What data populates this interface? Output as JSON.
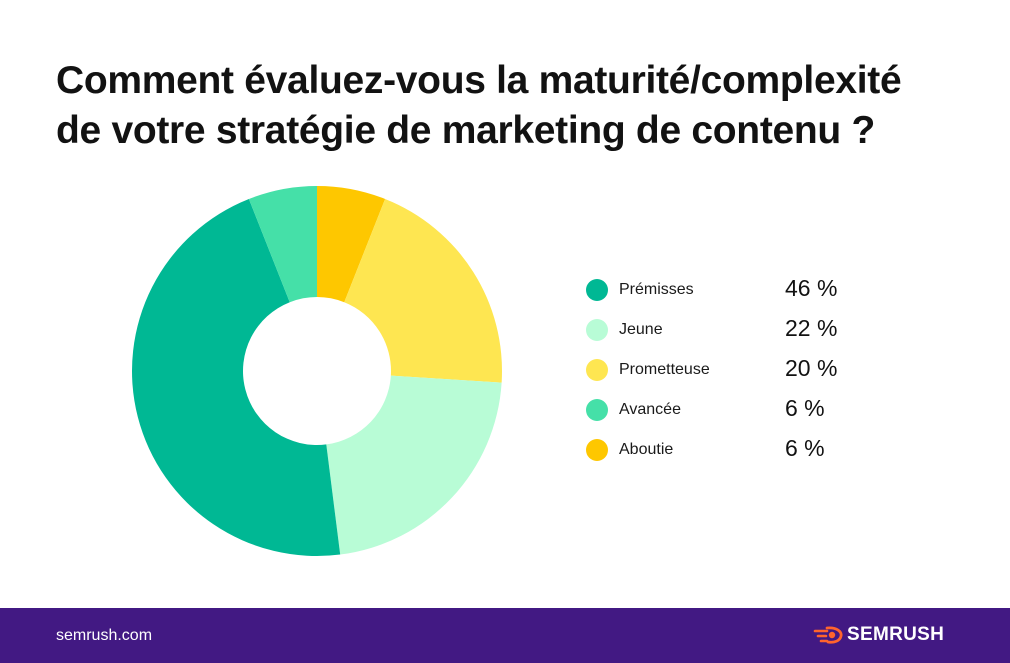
{
  "header": {
    "title_lines": [
      "Comment évaluez-vous la maturité/complexité",
      "de votre stratégie de marketing de contenu ?"
    ]
  },
  "chart_data": {
    "type": "pie",
    "variant": "donut",
    "start_angle_deg": 0,
    "direction": "clockwise",
    "order_clockwise_from_top": [
      "Aboutie",
      "Prometteuse",
      "Jeune",
      "Prémisses",
      "Avancée"
    ],
    "categories": [
      "Prémisses",
      "Jeune",
      "Prometteuse",
      "Avancée",
      "Aboutie"
    ],
    "values": [
      46,
      22,
      20,
      6,
      6
    ],
    "value_labels": [
      "46 %",
      "22 %",
      "20 %",
      "6 %",
      "6 %"
    ],
    "colors": [
      "#00B894",
      "#B8FCD6",
      "#FEE651",
      "#45E0A8",
      "#FEC700"
    ],
    "unit": "%",
    "legend_position": "right"
  },
  "footer": {
    "url": "semrush.com",
    "brand": "SEMRUSH",
    "brand_icon": "semrush-flame-icon",
    "brand_icon_color": "#FF642D",
    "background": "#421983"
  }
}
